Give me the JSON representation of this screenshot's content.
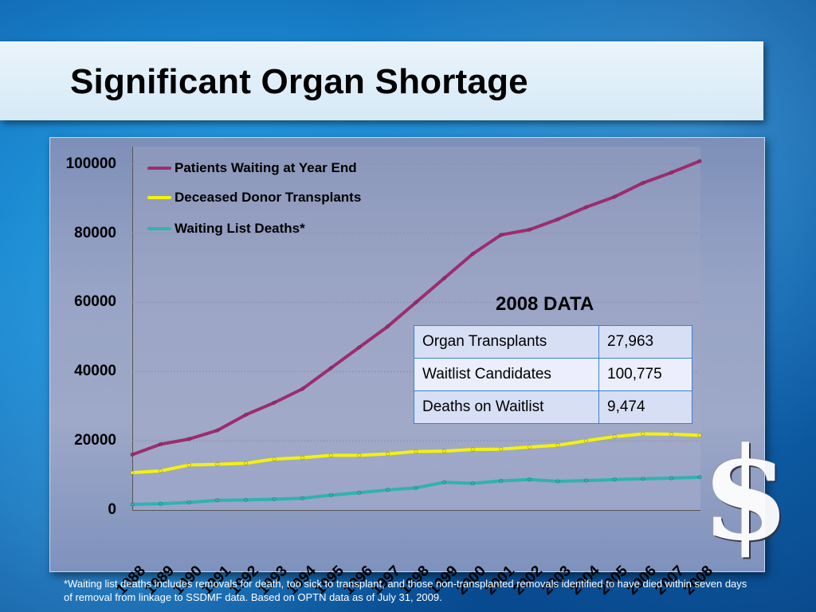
{
  "title": "Significant Organ Shortage",
  "footnote": "*Waiting list deaths includes removals for death, too sick to transplant, and those non-transplanted removals identified to have died within seven days of removal from linkage to SSDMF data.  Based on OPTN data as of July 31, 2009.",
  "data_table": {
    "title": "2008 DATA",
    "rows": [
      {
        "label": "Organ Transplants",
        "value": "27,963"
      },
      {
        "label": "Waitlist Candidates",
        "value": "100,775"
      },
      {
        "label": "Deaths on Waitlist",
        "value": "9,474"
      }
    ]
  },
  "colors": {
    "patients_waiting": "#9b2d6e",
    "deceased_donor": "#f4f20a",
    "waitlist_deaths": "#2fb3b0",
    "grid": "#8a8ea8"
  },
  "chart_data": {
    "type": "line",
    "x": [
      "1988",
      "1989",
      "1990",
      "1991",
      "1992",
      "1993",
      "1994",
      "1995",
      "1996",
      "1997",
      "1998",
      "1999",
      "2000",
      "2001",
      "2002",
      "2003",
      "2004",
      "2005",
      "2006",
      "2007",
      "2008"
    ],
    "y_ticks": [
      "100000",
      "80000",
      "60000",
      "40000",
      "20000",
      "0"
    ],
    "ylim": [
      0,
      105000
    ],
    "grid": true,
    "legend_position": "top-left",
    "series": [
      {
        "name": "Patients Waiting at Year End",
        "color_key": "patients_waiting",
        "values": [
          16000,
          19000,
          20500,
          23000,
          27500,
          31000,
          35000,
          41000,
          47000,
          53000,
          60000,
          67000,
          74000,
          79500,
          81000,
          84000,
          87500,
          90500,
          94500,
          97500,
          100800
        ]
      },
      {
        "name": "Deceased Donor Transplants",
        "color_key": "deceased_donor",
        "values": [
          10800,
          11300,
          13000,
          13200,
          13500,
          14700,
          15100,
          15800,
          15800,
          16200,
          16900,
          17000,
          17500,
          17600,
          18200,
          18700,
          20000,
          21200,
          22000,
          21900,
          21600
        ]
      },
      {
        "name": "Waiting List Deaths*",
        "color_key": "waitlist_deaths",
        "values": [
          1600,
          1800,
          2200,
          2800,
          2900,
          3100,
          3400,
          4300,
          5000,
          5800,
          6400,
          8000,
          7700,
          8400,
          8800,
          8300,
          8500,
          8800,
          9000,
          9200,
          9474
        ]
      }
    ]
  }
}
